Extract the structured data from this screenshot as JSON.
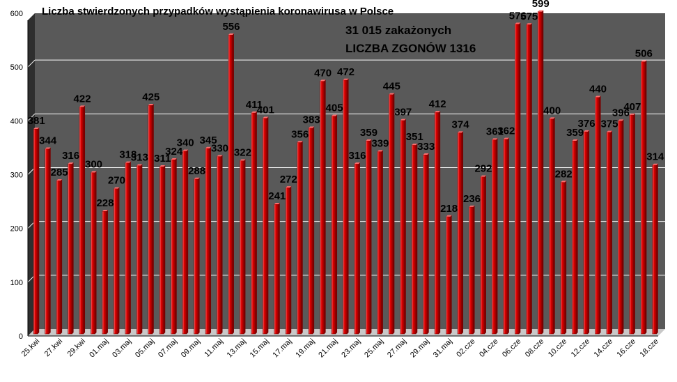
{
  "colors": {
    "plot_background": "#595959",
    "wall_shadow": "#2e2e2e",
    "floor": "#c8c8c8",
    "gridline": "#ffffff",
    "bar_face": "#c00000",
    "bar_highlight": "#ff6f6f",
    "bar_dark": "#7a0000"
  },
  "chart_data": {
    "type": "bar",
    "title": "Liczba stwierdzonych przypadków wystąpienia koronawirusa w Polsce",
    "annotations": [
      "31 015 zakażonych",
      "LICZBA ZGONÓW  1316"
    ],
    "ylim": [
      0,
      600
    ],
    "yticks": [
      "0",
      "100",
      "200",
      "300",
      "400",
      "500",
      "600"
    ],
    "grid": true,
    "legend": "none",
    "x_tick_labels": [
      "25.kwi",
      "27.kwi",
      "29.kwi",
      "01.maj",
      "03.maj",
      "05.maj",
      "07.maj",
      "09.maj",
      "11.maj",
      "13.maj",
      "15.maj",
      "17.maj",
      "19.maj",
      "21.maj",
      "23.maj",
      "25.maj",
      "27.maj",
      "29.maj",
      "31.maj",
      "02.cze",
      "04.cze",
      "06.cze",
      "08.cze",
      "10.cze",
      "12.cze",
      "14.cze",
      "16.cze",
      "18.cze"
    ],
    "values": [
      381,
      344,
      285,
      316,
      422,
      300,
      228,
      270,
      318,
      313,
      425,
      311,
      324,
      340,
      288,
      345,
      330,
      556,
      322,
      411,
      401,
      241,
      272,
      356,
      383,
      470,
      405,
      472,
      316,
      359,
      339,
      445,
      397,
      351,
      333,
      412,
      218,
      374,
      236,
      292,
      361,
      362,
      576,
      575,
      599,
      400,
      282,
      359,
      376,
      440,
      375,
      396,
      407,
      506,
      314
    ],
    "data_labels": [
      "381",
      "344",
      "285",
      "316",
      "422",
      "300",
      "228",
      "270",
      "318",
      "313",
      "425",
      "311",
      "324",
      "340",
      "288",
      "345",
      "330",
      "556",
      "322",
      "411",
      "401",
      "241",
      "272",
      "356",
      "383",
      "470",
      "405",
      "472",
      "316",
      "359",
      "339",
      "445",
      "397",
      "351",
      "333",
      "412",
      "218",
      "374",
      "236",
      "292",
      "361",
      "362",
      "576",
      "575",
      "599",
      "400",
      "282",
      "359",
      "376",
      "440",
      "375",
      "396",
      "407",
      "506",
      "314"
    ]
  }
}
